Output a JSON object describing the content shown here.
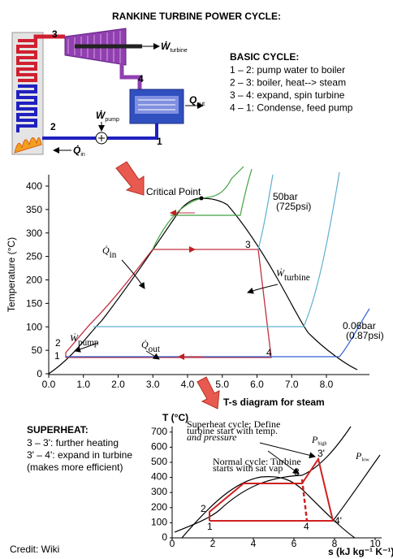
{
  "title": "RANKINE TURBINE POWER CYCLE:",
  "schematic": {
    "state_labels": [
      "3",
      "4",
      "2",
      "1"
    ],
    "w_turbine": {
      "symbol": "Ẇ",
      "subscript": "turbine"
    },
    "q_out": {
      "symbol": "Q",
      "subscript": "out"
    },
    "w_pump": {
      "symbol": "Ẇ",
      "subscript": "pump"
    },
    "q_in": {
      "symbol": "Q̇",
      "subscript": "in"
    }
  },
  "basic_cycle": {
    "heading": "BASIC CYCLE:",
    "steps": [
      "1 – 2: pump water to boiler",
      "2 – 3: boiler, heat--> steam",
      "3 – 4: expand, spin turbine",
      "4 – 1: Condense, feed pump"
    ]
  },
  "ts_chart": {
    "y_axis_label": "Temperature (°C)",
    "yticks": [
      "0",
      "50",
      "100",
      "150",
      "200",
      "250",
      "300",
      "350",
      "400"
    ],
    "xticks": [
      "0.0",
      "1.0",
      "2.0",
      "3.0",
      "4.0",
      "5.0",
      "6.0",
      "7.0",
      "8.0"
    ],
    "critical_point": "Critical Point",
    "isobars": [
      {
        "name": "50bar",
        "alt": "(725psi)"
      },
      {
        "name": "0.06bar",
        "alt": "(0.87psi)"
      }
    ],
    "state_labels": [
      "1",
      "2",
      "3",
      "4"
    ],
    "q_in": {
      "symbol": "Q̇",
      "subscript": "in"
    },
    "w_turbine": {
      "symbol": "Ẇ",
      "subscript": "turbine"
    },
    "w_pump": {
      "symbol": "Ẇ",
      "subscript": "pump"
    },
    "q_out": {
      "symbol": "Q̇",
      "subscript": "out"
    },
    "caption": "T-s diagram for steam"
  },
  "superheat": {
    "heading": "SUPERHEAT:",
    "lines": [
      "3 – 3': further heating",
      "3' – 4': expand in turbine",
      "(makes more efficient)"
    ]
  },
  "superheat_chart": {
    "y_axis_label": "T (°C)",
    "yticks": [
      "0",
      "100",
      "200",
      "300",
      "400",
      "500",
      "600",
      "700"
    ],
    "xticks": [
      "0",
      "2",
      "4",
      "6",
      "8",
      "10"
    ],
    "x_axis_label": "s (kJ kg⁻¹ K⁻¹)",
    "superheat_note": [
      "Superheat cycle: Define",
      "turbine start with temp.",
      "and pressure"
    ],
    "normal_note": [
      "Normal cycle: Turbine",
      "starts with sat vap"
    ],
    "p_high": {
      "symbol": "P",
      "subscript": "high"
    },
    "p_low": {
      "symbol": "P",
      "subscript": "low"
    },
    "state_labels": [
      "1",
      "2",
      "3",
      "3'",
      "4",
      "4'"
    ]
  },
  "credit": "Credit: Wiki"
}
